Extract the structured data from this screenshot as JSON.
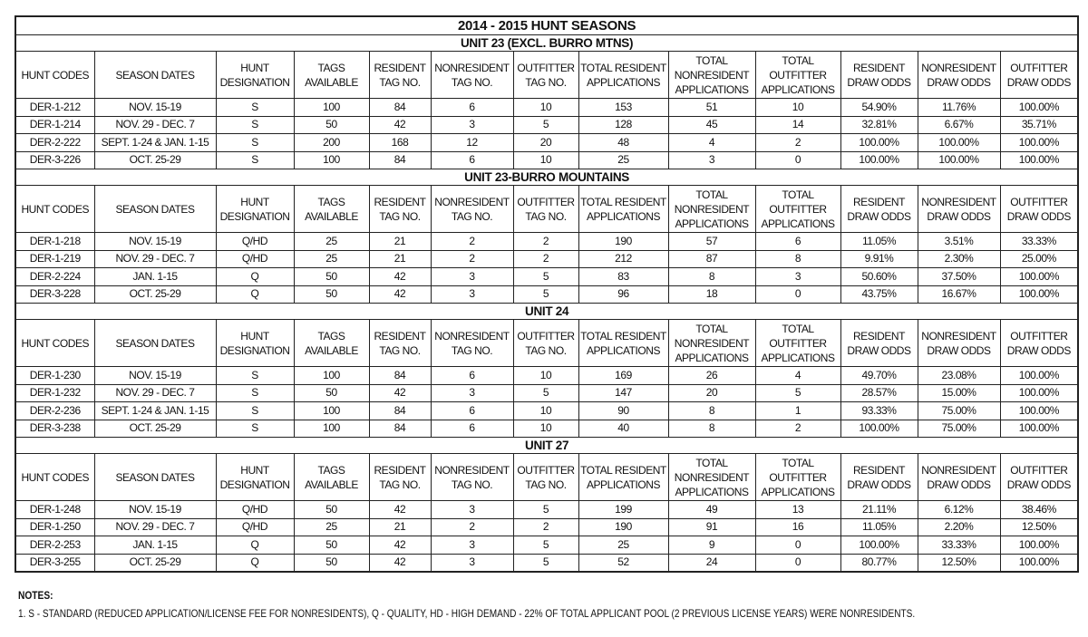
{
  "title": "2014 - 2015 HUNT SEASONS",
  "headers": [
    "HUNT CODES",
    "SEASON DATES",
    "HUNT DESIGNATION",
    "TAGS AVAILABLE",
    "RESIDENT TAG NO.",
    "NONRESIDENT TAG NO.",
    "OUTFITTER TAG NO.",
    "TOTAL RESIDENT APPLICATIONS",
    "TOTAL NONRESIDENT APPLICATIONS",
    "TOTAL OUTFITTER APPLICATIONS",
    "RESIDENT DRAW ODDS",
    "NONRESIDENT DRAW ODDS",
    "OUTFITTER DRAW ODDS"
  ],
  "sections": [
    {
      "name": "UNIT 23 (EXCL. BURRO MTNS)",
      "rows": [
        [
          "DER-1-212",
          "NOV. 15-19",
          "S",
          "100",
          "84",
          "6",
          "10",
          "153",
          "51",
          "10",
          "54.90%",
          "11.76%",
          "100.00%"
        ],
        [
          "DER-1-214",
          "NOV. 29 - DEC. 7",
          "S",
          "50",
          "42",
          "3",
          "5",
          "128",
          "45",
          "14",
          "32.81%",
          "6.67%",
          "35.71%"
        ],
        [
          "DER-2-222",
          "SEPT. 1-24 & JAN. 1-15",
          "S",
          "200",
          "168",
          "12",
          "20",
          "48",
          "4",
          "2",
          "100.00%",
          "100.00%",
          "100.00%"
        ],
        [
          "DER-3-226",
          "OCT. 25-29",
          "S",
          "100",
          "84",
          "6",
          "10",
          "25",
          "3",
          "0",
          "100.00%",
          "100.00%",
          "100.00%"
        ]
      ]
    },
    {
      "name": "UNIT 23-BURRO MOUNTAINS",
      "rows": [
        [
          "DER-1-218",
          "NOV. 15-19",
          "Q/HD",
          "25",
          "21",
          "2",
          "2",
          "190",
          "57",
          "6",
          "11.05%",
          "3.51%",
          "33.33%"
        ],
        [
          "DER-1-219",
          "NOV. 29 - DEC. 7",
          "Q/HD",
          "25",
          "21",
          "2",
          "2",
          "212",
          "87",
          "8",
          "9.91%",
          "2.30%",
          "25.00%"
        ],
        [
          "DER-2-224",
          "JAN. 1-15",
          "Q",
          "50",
          "42",
          "3",
          "5",
          "83",
          "8",
          "3",
          "50.60%",
          "37.50%",
          "100.00%"
        ],
        [
          "DER-3-228",
          "OCT. 25-29",
          "Q",
          "50",
          "42",
          "3",
          "5",
          "96",
          "18",
          "0",
          "43.75%",
          "16.67%",
          "100.00%"
        ]
      ]
    },
    {
      "name": "UNIT 24",
      "rows": [
        [
          "DER-1-230",
          "NOV. 15-19",
          "S",
          "100",
          "84",
          "6",
          "10",
          "169",
          "26",
          "4",
          "49.70%",
          "23.08%",
          "100.00%"
        ],
        [
          "DER-1-232",
          "NOV. 29 - DEC. 7",
          "S",
          "50",
          "42",
          "3",
          "5",
          "147",
          "20",
          "5",
          "28.57%",
          "15.00%",
          "100.00%"
        ],
        [
          "DER-2-236",
          "SEPT. 1-24 & JAN. 1-15",
          "S",
          "100",
          "84",
          "6",
          "10",
          "90",
          "8",
          "1",
          "93.33%",
          "75.00%",
          "100.00%"
        ],
        [
          "DER-3-238",
          "OCT. 25-29",
          "S",
          "100",
          "84",
          "6",
          "10",
          "40",
          "8",
          "2",
          "100.00%",
          "75.00%",
          "100.00%"
        ]
      ]
    },
    {
      "name": "UNIT 27",
      "rows": [
        [
          "DER-1-248",
          "NOV. 15-19",
          "Q/HD",
          "50",
          "42",
          "3",
          "5",
          "199",
          "49",
          "13",
          "21.11%",
          "6.12%",
          "38.46%"
        ],
        [
          "DER-1-250",
          "NOV. 29 - DEC. 7",
          "Q/HD",
          "25",
          "21",
          "2",
          "2",
          "190",
          "91",
          "16",
          "11.05%",
          "2.20%",
          "12.50%"
        ],
        [
          "DER-2-253",
          "JAN. 1-15",
          "Q",
          "50",
          "42",
          "3",
          "5",
          "25",
          "9",
          "0",
          "100.00%",
          "33.33%",
          "100.00%"
        ],
        [
          "DER-3-255",
          "OCT. 25-29",
          "Q",
          "50",
          "42",
          "3",
          "5",
          "52",
          "24",
          "0",
          "80.77%",
          "12.50%",
          "100.00%"
        ]
      ]
    }
  ],
  "notes": {
    "heading": "NOTES:",
    "items": [
      "1.  S - STANDARD (REDUCED APPLICATION/LICENSE FEE FOR NONRESIDENTS), Q - QUALITY, HD - HIGH DEMAND - 22% OF TOTAL APPLICANT POOL (2 PREVIOUS LICENSE YEARS) WERE NONRESIDENTS."
    ]
  }
}
